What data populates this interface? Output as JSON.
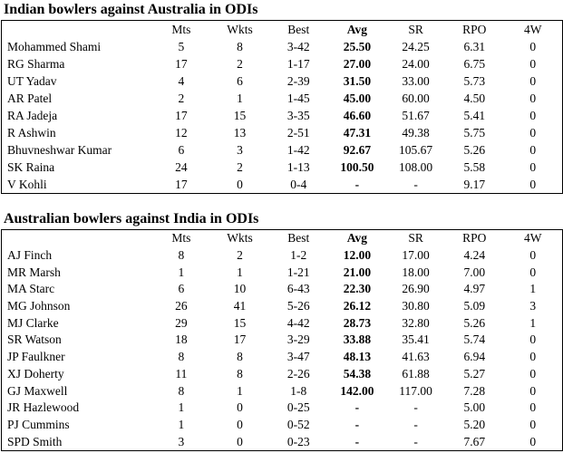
{
  "page": {
    "background_color": "#ffffff",
    "text_color": "#000000",
    "border_color": "#000000"
  },
  "tables": [
    {
      "title": "Indian bowlers against Australia in ODIs",
      "columns": [
        "",
        "Mts",
        "Wkts",
        "Best",
        "Avg",
        "SR",
        "RPO",
        "4W"
      ],
      "bold_column": "Avg",
      "rows": [
        [
          "Mohammed Shami",
          "5",
          "8",
          "3-42",
          "25.50",
          "24.25",
          "6.31",
          "0"
        ],
        [
          "RG Sharma",
          "17",
          "2",
          "1-17",
          "27.00",
          "24.00",
          "6.75",
          "0"
        ],
        [
          "UT Yadav",
          "4",
          "6",
          "2-39",
          "31.50",
          "33.00",
          "5.73",
          "0"
        ],
        [
          "AR Patel",
          "2",
          "1",
          "1-45",
          "45.00",
          "60.00",
          "4.50",
          "0"
        ],
        [
          "RA Jadeja",
          "17",
          "15",
          "3-35",
          "46.60",
          "51.67",
          "5.41",
          "0"
        ],
        [
          "R Ashwin",
          "12",
          "13",
          "2-51",
          "47.31",
          "49.38",
          "5.75",
          "0"
        ],
        [
          "Bhuvneshwar Kumar",
          "6",
          "3",
          "1-42",
          "92.67",
          "105.67",
          "5.26",
          "0"
        ],
        [
          "SK Raina",
          "24",
          "2",
          "1-13",
          "100.50",
          "108.00",
          "5.58",
          "0"
        ],
        [
          "V Kohli",
          "17",
          "0",
          "0-4",
          "-",
          "-",
          "9.17",
          "0"
        ]
      ]
    },
    {
      "title": "Australian bowlers against India in ODIs",
      "columns": [
        "",
        "Mts",
        "Wkts",
        "Best",
        "Avg",
        "SR",
        "RPO",
        "4W"
      ],
      "bold_column": "Avg",
      "rows": [
        [
          "AJ Finch",
          "8",
          "2",
          "1-2",
          "12.00",
          "17.00",
          "4.24",
          "0"
        ],
        [
          "MR Marsh",
          "1",
          "1",
          "1-21",
          "21.00",
          "18.00",
          "7.00",
          "0"
        ],
        [
          "MA Starc",
          "6",
          "10",
          "6-43",
          "22.30",
          "26.90",
          "4.97",
          "1"
        ],
        [
          "MG Johnson",
          "26",
          "41",
          "5-26",
          "26.12",
          "30.80",
          "5.09",
          "3"
        ],
        [
          "MJ Clarke",
          "29",
          "15",
          "4-42",
          "28.73",
          "32.80",
          "5.26",
          "1"
        ],
        [
          "SR Watson",
          "18",
          "17",
          "3-29",
          "33.88",
          "35.41",
          "5.74",
          "0"
        ],
        [
          "JP Faulkner",
          "8",
          "8",
          "3-47",
          "48.13",
          "41.63",
          "6.94",
          "0"
        ],
        [
          "XJ Doherty",
          "11",
          "8",
          "2-26",
          "54.38",
          "61.88",
          "5.27",
          "0"
        ],
        [
          "GJ Maxwell",
          "8",
          "1",
          "1-8",
          "142.00",
          "117.00",
          "7.28",
          "0"
        ],
        [
          "JR Hazlewood",
          "1",
          "0",
          "0-25",
          "-",
          "-",
          "5.00",
          "0"
        ],
        [
          "PJ Cummins",
          "1",
          "0",
          "0-52",
          "-",
          "-",
          "5.20",
          "0"
        ],
        [
          "SPD Smith",
          "3",
          "0",
          "0-23",
          "-",
          "-",
          "7.67",
          "0"
        ]
      ]
    }
  ]
}
